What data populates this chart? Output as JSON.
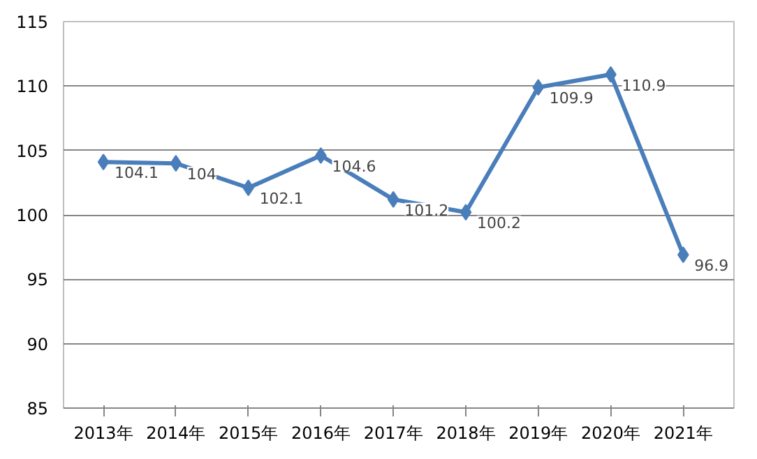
{
  "chart_data": {
    "type": "line",
    "categories": [
      "2013年",
      "2014年",
      "2015年",
      "2016年",
      "2017年",
      "2018年",
      "2019年",
      "2020年",
      "2021年"
    ],
    "series": [
      {
        "color": "#4a7ebb",
        "values": [
          104.1,
          104,
          102.1,
          104.6,
          101.2,
          100.2,
          109.9,
          110.9,
          96.9
        ]
      }
    ],
    "ylim": [
      85,
      115
    ],
    "yticks": [
      85,
      90,
      95,
      100,
      105,
      110,
      115
    ],
    "grid": "y",
    "marker": "diamond",
    "line_style": "solid",
    "data_labels": true
  }
}
